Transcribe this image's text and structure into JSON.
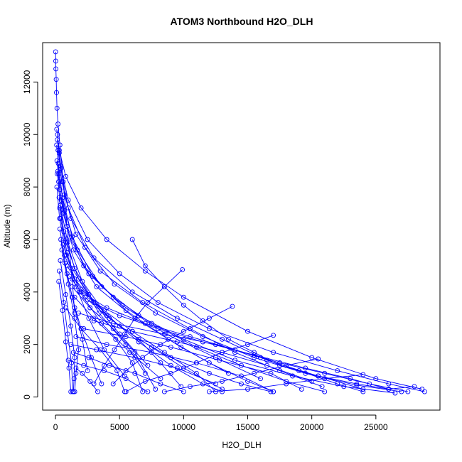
{
  "chart_data": {
    "type": "line",
    "title": "ATOM3 Northbound H2O_DLH",
    "xlabel": "H2O_DLH",
    "ylabel": "Altitude (m)",
    "xlim": [
      -1000,
      30000
    ],
    "ylim": [
      -500,
      13500
    ],
    "x_ticks": [
      0,
      5000,
      10000,
      15000,
      20000,
      25000
    ],
    "y_ticks": [
      0,
      2000,
      4000,
      6000,
      8000,
      10000,
      12000
    ],
    "grid": false,
    "color": "#0000ff",
    "marker": "open-circle",
    "profiles": [
      {
        "x": [
          10,
          20,
          30,
          60,
          80,
          120,
          200,
          350,
          600,
          900,
          1300,
          1500
        ],
        "y": [
          13150,
          12800,
          12500,
          12100,
          11600,
          11000,
          10400,
          9600,
          8200,
          6500,
          4500,
          3200
        ]
      },
      {
        "x": [
          100,
          300,
          800,
          2000,
          4000,
          7000,
          10000,
          15000,
          20000,
          25000,
          28600
        ],
        "y": [
          10200,
          9400,
          8400,
          7200,
          6000,
          4800,
          3800,
          2500,
          1500,
          700,
          300
        ]
      },
      {
        "x": [
          150,
          400,
          1000,
          2500,
          5000,
          8000,
          12000,
          17000,
          22000,
          26000,
          28800
        ],
        "y": [
          9800,
          8800,
          7500,
          6000,
          4700,
          3600,
          2600,
          1700,
          1000,
          500,
          200
        ]
      },
      {
        "x": [
          200,
          500,
          1200,
          3000,
          6000,
          9500,
          13000,
          16500,
          20500,
          24000
        ],
        "y": [
          9400,
          8200,
          6800,
          5300,
          4000,
          3000,
          2200,
          1400,
          800,
          300
        ]
      },
      {
        "x": [
          120,
          350,
          900,
          2200,
          4500,
          7500,
          11000,
          14500,
          18000,
          21000
        ],
        "y": [
          9000,
          7900,
          6500,
          5000,
          3800,
          2800,
          1900,
          1200,
          600,
          200
        ]
      },
      {
        "x": [
          180,
          450,
          1100,
          2600,
          5200,
          8600,
          12500,
          16000
        ],
        "y": [
          8600,
          7500,
          6100,
          4700,
          3500,
          2400,
          1500,
          700
        ]
      },
      {
        "x": [
          250,
          600,
          1400,
          3200,
          6200,
          9800,
          13500
        ],
        "y": [
          8200,
          7000,
          5600,
          4200,
          3000,
          1900,
          900
        ]
      },
      {
        "x": [
          160,
          420,
          1000,
          2300,
          4600,
          7800,
          11500,
          15500,
          19500,
          23500,
          27000
        ],
        "y": [
          10000,
          8700,
          7200,
          5700,
          4300,
          3200,
          2300,
          1500,
          900,
          450,
          200
        ]
      },
      {
        "x": [
          90,
          260,
          700,
          1700,
          3600,
          6500,
          10000,
          14000,
          18500,
          22500,
          26500
        ],
        "y": [
          9600,
          8500,
          7100,
          5600,
          4200,
          3100,
          2200,
          1400,
          800,
          400,
          150
        ]
      },
      {
        "x": [
          300,
          700,
          1600,
          3500,
          6800,
          10500,
          14000,
          17500,
          20800
        ],
        "y": [
          9300,
          7700,
          6200,
          4800,
          3600,
          2600,
          1700,
          1000,
          400
        ]
      },
      {
        "x": [
          220,
          550,
          1300,
          2900,
          5500,
          8800,
          12000,
          15000,
          17000
        ],
        "y": [
          8900,
          7600,
          6100,
          4600,
          3300,
          2200,
          1300,
          600,
          200
        ]
      },
      {
        "x": [
          140,
          380,
          950,
          2100,
          4000,
          6500,
          9000,
          11500,
          13000
        ],
        "y": [
          8500,
          7300,
          5900,
          4400,
          3100,
          2100,
          1200,
          500,
          200
        ]
      },
      {
        "x": [
          110,
          320,
          850,
          1900,
          3600,
          5800,
          8200
        ],
        "y": [
          8000,
          6800,
          5400,
          4000,
          2800,
          1700,
          700
        ]
      },
      {
        "x": [
          280,
          650,
          1500,
          3000,
          5000,
          7200
        ],
        "y": [
          7600,
          6300,
          4900,
          3600,
          2400,
          1200
        ]
      },
      {
        "x": [
          320,
          800,
          1800,
          3400,
          5500,
          7000
        ],
        "y": [
          7200,
          5900,
          4500,
          3200,
          2000,
          900
        ]
      },
      {
        "x": [
          400,
          900,
          1600,
          2600,
          3800,
          5400
        ],
        "y": [
          6800,
          5500,
          4200,
          3000,
          1800,
          800
        ]
      },
      {
        "x": [
          350,
          750,
          1300,
          2000,
          2800,
          3600
        ],
        "y": [
          6400,
          5100,
          3800,
          2600,
          1500,
          500
        ]
      },
      {
        "x": [
          420,
          900,
          1500,
          2100,
          2500
        ],
        "y": [
          6000,
          4700,
          3400,
          2200,
          1000
        ]
      },
      {
        "x": [
          500,
          1000,
          1500,
          1800,
          1600,
          1500
        ],
        "y": [
          5600,
          4300,
          3000,
          1800,
          900,
          200
        ]
      },
      {
        "x": [
          380,
          800,
          1200,
          1500,
          1450,
          1400
        ],
        "y": [
          5200,
          3900,
          2700,
          1500,
          700,
          200
        ]
      },
      {
        "x": [
          300,
          650,
          950,
          1250,
          1350
        ],
        "y": [
          4800,
          3600,
          2400,
          1300,
          200
        ]
      },
      {
        "x": [
          260,
          550,
          800,
          1050,
          1200
        ],
        "y": [
          4400,
          3300,
          2100,
          1100,
          200
        ]
      },
      {
        "x": [
          600,
          1300,
          2600,
          4200,
          6500,
          9000,
          12000,
          14500,
          16800
        ],
        "y": [
          5800,
          4900,
          3900,
          3000,
          2200,
          1500,
          900,
          500,
          200
        ]
      },
      {
        "x": [
          700,
          1500,
          3000,
          5000,
          7500,
          10000,
          13000
        ],
        "y": [
          5400,
          4500,
          3600,
          2700,
          1900,
          1100,
          300
        ]
      },
      {
        "x": [
          900,
          2000,
          3800,
          6000,
          8500,
          11000,
          12500
        ],
        "y": [
          5000,
          4100,
          3300,
          2500,
          1700,
          900,
          200
        ]
      },
      {
        "x": [
          1100,
          2300,
          4200,
          6500,
          8200,
          9800
        ],
        "y": [
          4600,
          3800,
          3000,
          2200,
          1300,
          400
        ]
      },
      {
        "x": [
          1300,
          2700,
          4500,
          6200,
          7800
        ],
        "y": [
          4200,
          3400,
          2600,
          1700,
          300
        ]
      },
      {
        "x": [
          1500,
          3000,
          4700,
          6000,
          6800
        ],
        "y": [
          3800,
          3000,
          2200,
          1300,
          200
        ]
      },
      {
        "x": [
          800,
          2000,
          3500,
          4800,
          5400
        ],
        "y": [
          3400,
          2600,
          1800,
          1000,
          200
        ]
      },
      {
        "x": [
          2000,
          4000,
          7000,
          10500,
          14000,
          17500,
          21000,
          24500,
          27500
        ],
        "y": [
          4000,
          3400,
          2800,
          2300,
          1800,
          1300,
          900,
          500,
          200
        ]
      },
      {
        "x": [
          2500,
          5000,
          8000,
          11500,
          15500,
          19500,
          23000,
          26000
        ],
        "y": [
          3700,
          3100,
          2600,
          2100,
          1600,
          1100,
          700,
          300
        ]
      },
      {
        "x": [
          1800,
          4500,
          8500,
          12500,
          16000,
          19000,
          22000,
          24000
        ],
        "y": [
          3200,
          2800,
          2400,
          2000,
          1500,
          1000,
          500,
          200
        ]
      },
      {
        "x": [
          3000,
          6000,
          9500,
          13000,
          16500,
          20000
        ],
        "y": [
          2900,
          2500,
          2100,
          1700,
          1200,
          600
        ]
      },
      {
        "x": [
          2200,
          5500,
          9000,
          12800,
          16800,
          19200
        ],
        "y": [
          2600,
          2300,
          1900,
          1400,
          900,
          300
        ]
      },
      {
        "x": [
          1600,
          4000,
          7500,
          11000,
          14500,
          17000
        ],
        "y": [
          2300,
          2000,
          1700,
          1300,
          800,
          200
        ]
      },
      {
        "x": [
          1200,
          3200,
          6200,
          9500,
          12500
        ],
        "y": [
          2000,
          1800,
          1500,
          1100,
          500
        ]
      },
      {
        "x": [
          1400,
          2600,
          4200,
          6200,
          8200,
          10000
        ],
        "y": [
          1700,
          1500,
          1200,
          900,
          500,
          200
        ]
      },
      {
        "x": [
          1000,
          2200,
          3800,
          5500,
          7200
        ],
        "y": [
          1400,
          1200,
          1000,
          700,
          200
        ]
      },
      {
        "x": [
          1600,
          2100,
          2700,
          3300
        ],
        "y": [
          1100,
          900,
          600,
          200
        ]
      },
      {
        "x": [
          6000,
          7000,
          8500,
          10000,
          11500,
          13500,
          15500,
          17500,
          20500,
          23500,
          26000,
          28000
        ],
        "y": [
          6000,
          5000,
          4200,
          3500,
          2900,
          2200,
          1700,
          1200,
          800,
          500,
          300,
          400
        ]
      },
      {
        "x": [
          9900,
          8500,
          7200,
          6200,
          5400,
          4600,
          3800,
          3000
        ],
        "y": [
          4850,
          4200,
          3600,
          3000,
          2400,
          1800,
          1200,
          500
        ]
      },
      {
        "x": [
          13800,
          12000,
          10000,
          8200,
          6800,
          5500,
          4500
        ],
        "y": [
          3450,
          3000,
          2500,
          2000,
          1500,
          1000,
          500
        ]
      },
      {
        "x": [
          17000,
          15000,
          13000,
          11000,
          9000,
          7000,
          5500
        ],
        "y": [
          2350,
          2000,
          1700,
          1300,
          900,
          600,
          200
        ]
      },
      {
        "x": [
          20500,
          18000,
          15500,
          13000,
          10500,
          8500
        ],
        "y": [
          1450,
          1200,
          900,
          600,
          400,
          200
        ]
      },
      {
        "x": [
          24000,
          21000,
          18000,
          15000,
          12000
        ],
        "y": [
          850,
          700,
          500,
          300,
          200
        ]
      }
    ]
  }
}
